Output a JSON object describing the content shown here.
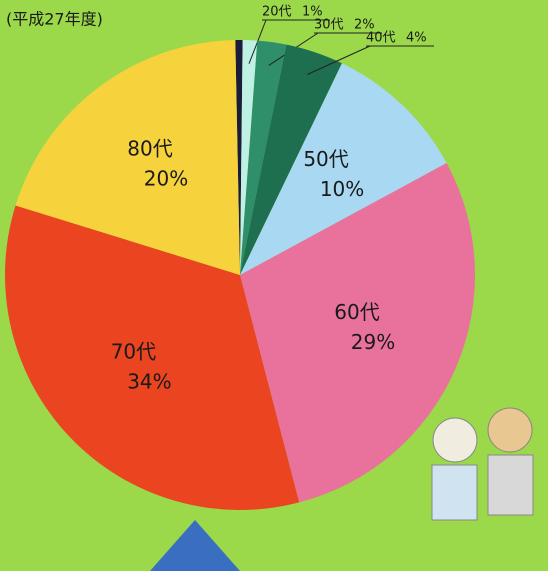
{
  "chart_data": {
    "type": "pie",
    "title": "(平成27年度)",
    "categories": [
      null,
      "20代",
      "30代",
      "40代",
      "50代",
      "60代",
      "70代",
      "80代"
    ],
    "values": [
      0.5,
      1,
      2,
      4,
      10,
      29,
      34,
      20
    ],
    "value_labels": [
      null,
      "1%",
      "2%",
      "4%",
      "10%",
      "29%",
      "34%",
      "20%"
    ],
    "colors": [
      "#1c1c3a",
      "#bff0e4",
      "#2f8f6a",
      "#1e6e50",
      "#a9d9f2",
      "#e9729c",
      "#ea4420",
      "#f6d33c"
    ]
  }
}
